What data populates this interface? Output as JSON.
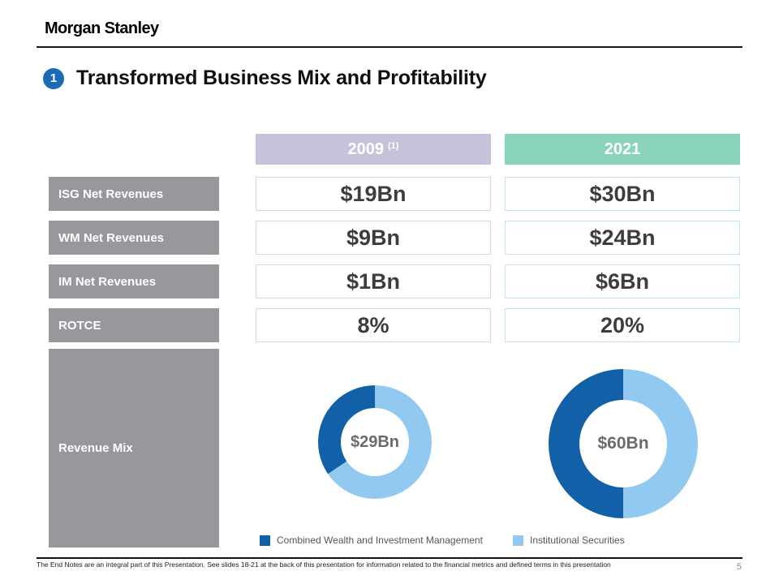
{
  "brand": "Morgan Stanley",
  "title": {
    "number": "1",
    "text": "Transformed Business Mix and Profitability"
  },
  "table": {
    "columns": [
      {
        "label": "2009",
        "superscript": "(1)"
      },
      {
        "label": "2021",
        "superscript": ""
      }
    ],
    "rows": [
      {
        "label": "ISG Net Revenues",
        "values": [
          "$19Bn",
          "$30Bn"
        ]
      },
      {
        "label": "WM Net Revenues",
        "values": [
          "$9Bn",
          "$24Bn"
        ]
      },
      {
        "label": "IM Net Revenues",
        "values": [
          "$1Bn",
          "$6Bn"
        ]
      },
      {
        "label": "ROTCE",
        "values": [
          "8%",
          "20%"
        ]
      }
    ],
    "revenue_mix_label": "Revenue Mix"
  },
  "chart_data": [
    {
      "type": "pie",
      "title": "Revenue Mix 2009",
      "center_label": "$29Bn",
      "total_bn": 29,
      "slices": [
        {
          "name": "Combined Wealth and Investment Management",
          "value": 10,
          "color": "#1260a7"
        },
        {
          "name": "Institutional Securities",
          "value": 19,
          "color": "#92c9f0"
        }
      ]
    },
    {
      "type": "pie",
      "title": "Revenue Mix 2021",
      "center_label": "$60Bn",
      "total_bn": 60,
      "slices": [
        {
          "name": "Combined Wealth and Investment Management",
          "value": 30,
          "color": "#1260a7"
        },
        {
          "name": "Institutional Securities",
          "value": 30,
          "color": "#92c9f0"
        }
      ]
    }
  ],
  "legend": [
    {
      "label": "Combined Wealth and Investment Management",
      "color": "#1260a7"
    },
    {
      "label": "Institutional Securities",
      "color": "#92c9f0"
    }
  ],
  "footer": {
    "note": "The End Notes are an integral part of this Presentation. See slides 18-21 at the back of this presentation for information related to the financial metrics and defined terms in this presentation",
    "page": "5"
  },
  "colors": {
    "header_2009": "#c5c3dc",
    "header_2021": "#89d4bc",
    "row_label_bg": "#98989c",
    "accent_blue": "#1b6ab3",
    "dark_blue": "#1260a7",
    "light_blue": "#92c9f0"
  }
}
